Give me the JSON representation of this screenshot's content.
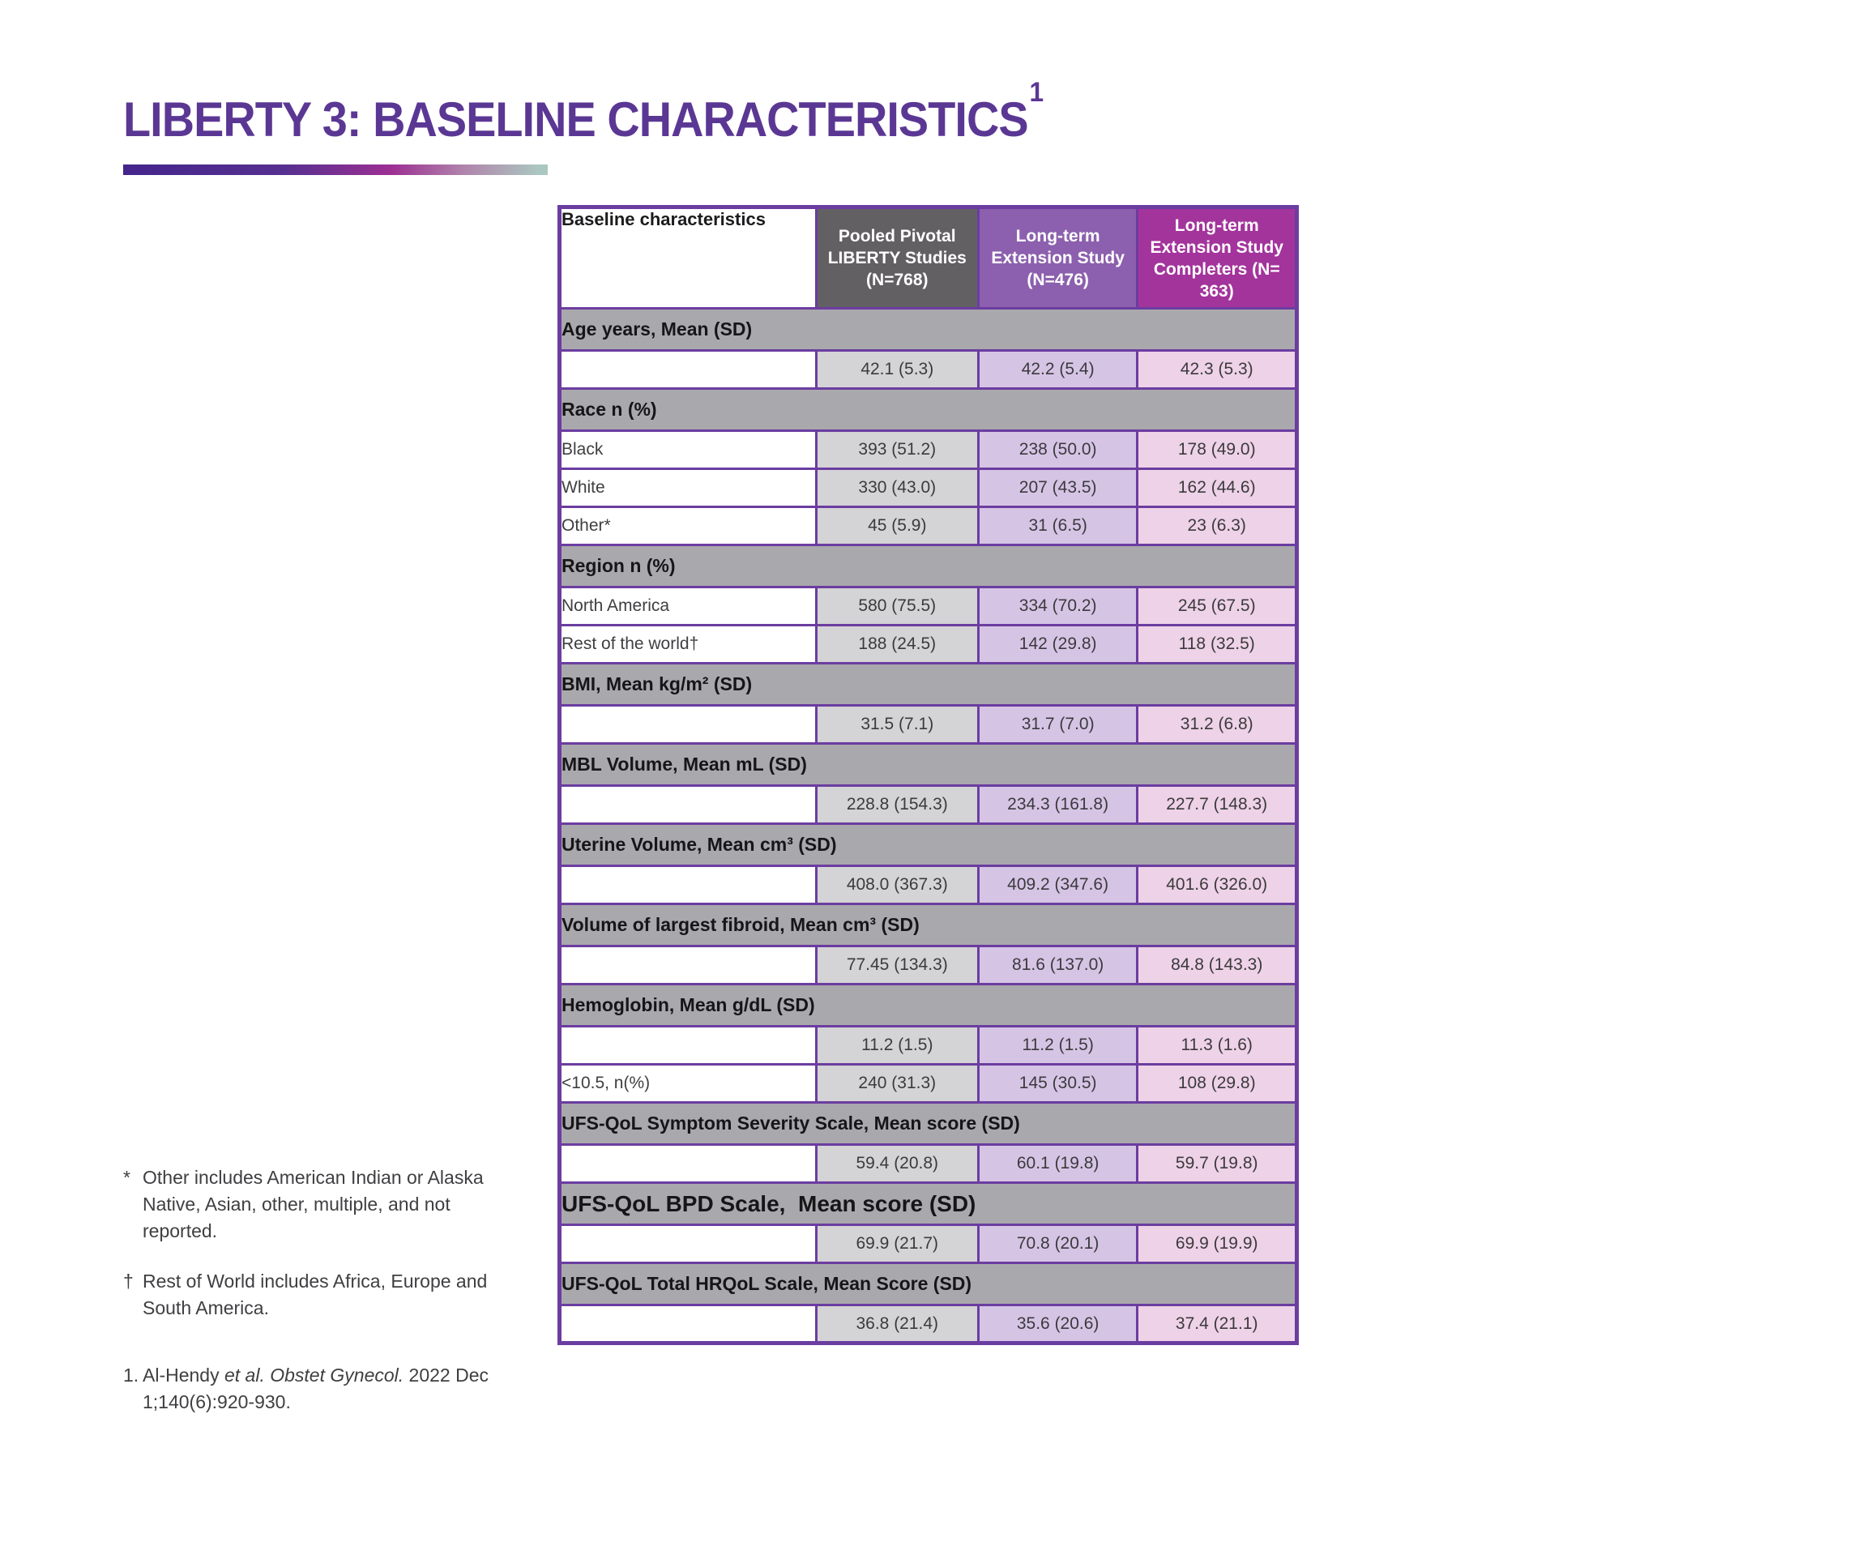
{
  "page": {
    "title": "LIBERTY 3: BASELINE CHARACTERISTICS",
    "title_superscript": "1"
  },
  "colors": {
    "title_purple": "#5b3794",
    "table_border": "#6b3da0",
    "header_col2_bg": "#636064",
    "header_col3_bg": "#8c60ae",
    "header_col4_bg": "#a3349c",
    "section_bg": "#a9a8ac",
    "cell_col2_bg": "#d4d3d5",
    "cell_col3_bg": "#d6c4e5",
    "cell_col4_bg": "#eed2e7",
    "grad_start": "#44258c",
    "grad_mid": "#9c2f93",
    "grad_end": "#abc8c0"
  },
  "table": {
    "columns": [
      {
        "label": "Baseline characteristics"
      },
      {
        "label": "Pooled Pivotal LIBERTY Studies (N=768)"
      },
      {
        "label": "Long-term Extension Study (N=476)"
      },
      {
        "label": "Long-term Extension Study Completers (N= 363)"
      }
    ],
    "rows": [
      {
        "type": "section",
        "label": "Age years, Mean (SD)"
      },
      {
        "type": "data",
        "label": "",
        "values": [
          "42.1 (5.3)",
          "42.2 (5.4)",
          "42.3 (5.3)"
        ]
      },
      {
        "type": "section",
        "label": "Race n (%)"
      },
      {
        "type": "data",
        "label": "Black",
        "values": [
          "393 (51.2)",
          "238 (50.0)",
          "178 (49.0)"
        ]
      },
      {
        "type": "data",
        "label": "White",
        "values": [
          "330 (43.0)",
          "207 (43.5)",
          "162 (44.6)"
        ]
      },
      {
        "type": "data",
        "label": "Other*",
        "values": [
          "45 (5.9)",
          "31 (6.5)",
          "23 (6.3)"
        ]
      },
      {
        "type": "section",
        "label": "Region n (%)"
      },
      {
        "type": "data",
        "label": "North America",
        "values": [
          "580 (75.5)",
          "334 (70.2)",
          "245 (67.5)"
        ]
      },
      {
        "type": "data",
        "label": "Rest of the world†",
        "values": [
          "188 (24.5)",
          "142 (29.8)",
          "118 (32.5)"
        ]
      },
      {
        "type": "section",
        "label": "BMI, Mean kg/m² (SD)"
      },
      {
        "type": "data",
        "label": "",
        "values": [
          "31.5 (7.1)",
          "31.7 (7.0)",
          "31.2 (6.8)"
        ]
      },
      {
        "type": "section",
        "label": "MBL Volume, Mean mL (SD)"
      },
      {
        "type": "data",
        "label": "",
        "values": [
          "228.8 (154.3)",
          "234.3 (161.8)",
          "227.7 (148.3)"
        ]
      },
      {
        "type": "section",
        "label": "Uterine Volume, Mean cm³ (SD)"
      },
      {
        "type": "data",
        "label": "",
        "values": [
          "408.0 (367.3)",
          "409.2 (347.6)",
          "401.6 (326.0)"
        ]
      },
      {
        "type": "section",
        "label": "Volume of largest fibroid, Mean cm³ (SD)"
      },
      {
        "type": "data",
        "label": "",
        "values": [
          "77.45 (134.3)",
          "81.6 (137.0)",
          "84.8 (143.3)"
        ]
      },
      {
        "type": "section",
        "label": "Hemoglobin, Mean g/dL (SD)"
      },
      {
        "type": "data",
        "label": "",
        "values": [
          "11.2 (1.5)",
          "11.2 (1.5)",
          "11.3 (1.6)"
        ]
      },
      {
        "type": "data",
        "label": "<10.5, n(%)",
        "values": [
          "240 (31.3)",
          "145 (30.5)",
          "108 (29.8)"
        ]
      },
      {
        "type": "section",
        "label": "UFS-QoL Symptom Severity Scale, Mean score (SD)"
      },
      {
        "type": "data",
        "label": "",
        "values": [
          "59.4 (20.8)",
          "60.1 (19.8)",
          "59.7 (19.8)"
        ]
      },
      {
        "type": "section",
        "label": "UFS-QoL BPD Scale,  Mean score (SD)",
        "large": true
      },
      {
        "type": "data",
        "label": "",
        "values": [
          "69.9 (21.7)",
          "70.8 (20.1)",
          "69.9 (19.9)"
        ]
      },
      {
        "type": "section",
        "label": "UFS-QoL Total HRQoL Scale, Mean Score (SD)"
      },
      {
        "type": "data",
        "label": "",
        "values": [
          "36.8 (21.4)",
          "35.6 (20.6)",
          "37.4 (21.1)"
        ]
      }
    ]
  },
  "footnotes": [
    {
      "marker": "*",
      "lines": [
        [
          {
            "t": "Other includes American Indian or Alaska"
          }
        ],
        [
          {
            "t": "Native, Asian, other, multiple, and not"
          }
        ],
        [
          {
            "t": "reported."
          }
        ]
      ]
    },
    {
      "marker": "†",
      "lines": [
        [
          {
            "t": "Rest of World includes Africa, Europe and"
          }
        ],
        [
          {
            "t": "South America."
          }
        ]
      ]
    },
    {
      "marker": "1.",
      "lines": [
        [
          {
            "t": "Al-Hendy "
          },
          {
            "t": "et al. Obstet Gynecol.",
            "i": true
          },
          {
            "t": " 2022 Dec"
          }
        ],
        [
          {
            "t": "1;140(6):920-930."
          }
        ]
      ]
    }
  ]
}
